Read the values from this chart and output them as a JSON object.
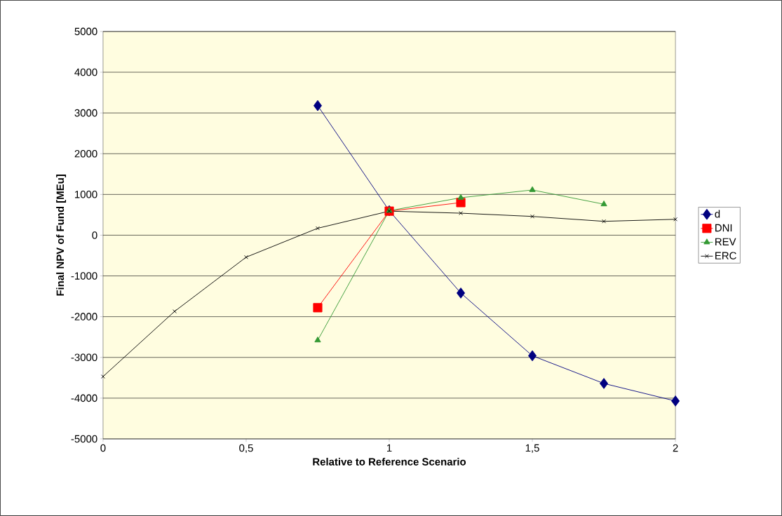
{
  "chart_data": {
    "type": "line",
    "xlabel": "Relative to Reference Scenario",
    "ylabel": "Final NPV of Fund [MEu]",
    "xlim": [
      0,
      2
    ],
    "ylim": [
      -5000,
      5000
    ],
    "xticks": [
      0,
      {
        "value": 0.5,
        "label": "0,5"
      },
      1,
      {
        "value": 1.5,
        "label": "1,5"
      },
      2
    ],
    "yticks": [
      -5000,
      -4000,
      -3000,
      -2000,
      -1000,
      0,
      1000,
      2000,
      3000,
      4000,
      5000
    ],
    "grid": "y",
    "legend": "right",
    "line_style": "solid",
    "series": [
      {
        "name": "d",
        "color": "#000080",
        "marker": "diamond",
        "x": [
          0.75,
          1,
          1.25,
          1.5,
          1.75,
          2
        ],
        "values": [
          3180,
          600,
          -1420,
          -2960,
          -3640,
          -4070
        ]
      },
      {
        "name": "DNI",
        "color": "#ff0000",
        "marker": "square",
        "x": [
          0.75,
          1,
          1.25
        ],
        "values": [
          -1780,
          590,
          800
        ]
      },
      {
        "name": "REV",
        "color": "#339933",
        "marker": "triangle",
        "x": [
          0.75,
          1,
          1.25,
          1.5,
          1.75
        ],
        "values": [
          -2580,
          600,
          920,
          1110,
          760
        ]
      },
      {
        "name": "ERC",
        "color": "#000000",
        "marker": "cross",
        "x": [
          0,
          0.25,
          0.5,
          0.75,
          1,
          1.25,
          1.5,
          1.75,
          2
        ],
        "values": [
          -3470,
          -1870,
          -540,
          170,
          590,
          540,
          460,
          340,
          390
        ]
      }
    ]
  }
}
